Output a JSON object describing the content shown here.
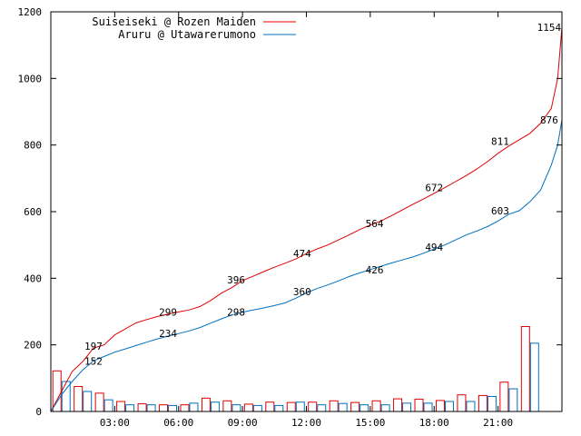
{
  "chart_data": {
    "type": "line",
    "title": "",
    "xlabel": "",
    "ylabel": "",
    "xlim": [
      0,
      24
    ],
    "ylim": [
      0,
      1200
    ],
    "y_ticks": [
      0,
      200,
      400,
      600,
      800,
      1000,
      1200
    ],
    "x_ticks": [
      {
        "x": 3,
        "label": "03:00"
      },
      {
        "x": 6,
        "label": "06:00"
      },
      {
        "x": 9,
        "label": "09:00"
      },
      {
        "x": 12,
        "label": "12:00"
      },
      {
        "x": 15,
        "label": "15:00"
      },
      {
        "x": 18,
        "label": "18:00"
      },
      {
        "x": 21,
        "label": "21:00"
      }
    ],
    "legend_position": "top-left",
    "grid": false,
    "series": [
      {
        "name": "Suiseiseki @ Rozen Maiden",
        "kind": "cumulative-line",
        "color": "#e00000",
        "x": [
          0,
          0.5,
          1,
          1.5,
          2,
          2.5,
          3,
          3.5,
          4,
          4.5,
          5,
          5.5,
          6,
          6.5,
          7,
          7.5,
          8,
          8.5,
          9,
          9.5,
          10,
          10.5,
          11,
          11.5,
          12,
          12.5,
          13,
          13.5,
          14,
          14.5,
          15,
          15.5,
          16,
          16.5,
          17,
          17.5,
          18,
          18.5,
          19,
          19.5,
          20,
          20.5,
          21,
          21.5,
          22,
          22.5,
          23,
          23.5,
          23.8,
          24
        ],
        "values": [
          0,
          60,
          120,
          150,
          190,
          200,
          230,
          248,
          266,
          276,
          285,
          292,
          299,
          305,
          315,
          333,
          355,
          372,
          393,
          406,
          420,
          433,
          445,
          458,
          474,
          488,
          500,
          515,
          530,
          546,
          560,
          572,
          588,
          605,
          622,
          638,
          655,
          672,
          690,
          708,
          728,
          750,
          775,
          797,
          816,
          835,
          865,
          910,
          1000,
          1154
        ],
        "data_labels": [
          {
            "x": 2,
            "value": 197
          },
          {
            "x": 5.5,
            "value": 299
          },
          {
            "x": 8.7,
            "value": 396
          },
          {
            "x": 11.8,
            "value": 474
          },
          {
            "x": 15.2,
            "value": 564
          },
          {
            "x": 18,
            "value": 672
          },
          {
            "x": 21.1,
            "value": 811
          },
          {
            "x": 23.4,
            "value": 1154
          }
        ]
      },
      {
        "name": "Aruru @ Utawarerumono",
        "kind": "cumulative-line",
        "color": "#0070c0",
        "x": [
          0,
          0.5,
          1,
          1.5,
          2,
          2.5,
          3,
          3.5,
          4,
          4.5,
          5,
          5.5,
          6,
          6.5,
          7,
          7.5,
          8,
          8.5,
          9,
          9.5,
          10,
          10.5,
          11,
          11.5,
          12,
          12.5,
          13,
          13.5,
          14,
          14.5,
          15,
          15.5,
          16,
          16.5,
          17,
          17.5,
          18,
          18.5,
          19,
          19.5,
          20,
          20.5,
          21,
          21.5,
          22,
          22.5,
          23,
          23.5,
          23.8,
          24
        ],
        "values": [
          0,
          50,
          90,
          125,
          152,
          165,
          178,
          188,
          198,
          208,
          218,
          226,
          234,
          242,
          252,
          265,
          278,
          290,
          298,
          305,
          311,
          318,
          326,
          340,
          356,
          369,
          380,
          392,
          405,
          416,
          426,
          436,
          446,
          455,
          464,
          475,
          488,
          500,
          515,
          530,
          542,
          555,
          572,
          592,
          603,
          630,
          665,
          740,
          800,
          876
        ],
        "data_labels": [
          {
            "x": 2,
            "value": 152
          },
          {
            "x": 5.5,
            "value": 234
          },
          {
            "x": 8.7,
            "value": 298
          },
          {
            "x": 11.8,
            "value": 360
          },
          {
            "x": 15.2,
            "value": 426
          },
          {
            "x": 18,
            "value": 494
          },
          {
            "x": 21.1,
            "value": 603
          },
          {
            "x": 23.4,
            "value": 876
          }
        ]
      },
      {
        "name": "Suiseiseki @ Rozen Maiden",
        "kind": "hourly-bars",
        "color": "#e00000",
        "x": [
          0.5,
          1.5,
          2.5,
          3.5,
          4.5,
          5.5,
          6.5,
          7.5,
          8.5,
          9.5,
          10.5,
          11.5,
          12.5,
          13.5,
          14.5,
          15.5,
          16.5,
          17.5,
          18.5,
          19.5,
          20.5,
          21.5,
          22.5,
          23.5
        ],
        "values": [
          122,
          75,
          55,
          30,
          23,
          20,
          20,
          40,
          32,
          22,
          28,
          27,
          28,
          32,
          27,
          32,
          38,
          37,
          33,
          50,
          48,
          88,
          255,
          0
        ]
      },
      {
        "name": "Aruru @ Utawarerumono",
        "kind": "hourly-bars",
        "color": "#0070c0",
        "x": [
          0.5,
          1.5,
          2.5,
          3.5,
          4.5,
          5.5,
          6.5,
          7.5,
          8.5,
          9.5,
          10.5,
          11.5,
          12.5,
          13.5,
          14.5,
          15.5,
          16.5,
          17.5,
          18.5,
          19.5,
          20.5,
          21.5,
          22.5,
          23.5
        ],
        "values": [
          90,
          60,
          35,
          20,
          20,
          18,
          25,
          28,
          20,
          18,
          18,
          28,
          20,
          24,
          20,
          20,
          25,
          25,
          30,
          30,
          45,
          68,
          205,
          0
        ]
      }
    ]
  }
}
